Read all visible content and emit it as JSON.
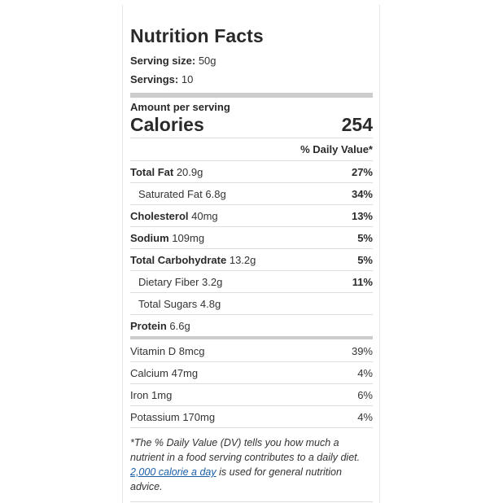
{
  "title": "Nutrition Facts",
  "serving": {
    "size_label": "Serving size:",
    "size_value": "50g",
    "count_label": "Servings:",
    "count_value": "10"
  },
  "amount_per_serving": "Amount per serving",
  "calories": {
    "label": "Calories",
    "value": "254"
  },
  "daily_value_header": "% Daily Value*",
  "nutrients": [
    {
      "name": "Total Fat",
      "amount": "20.9g",
      "dv": "27%"
    },
    {
      "name": "Saturated Fat",
      "amount": "6.8g",
      "dv": "34%"
    },
    {
      "name": "Cholesterol",
      "amount": "40mg",
      "dv": "13%"
    },
    {
      "name": "Sodium",
      "amount": "109mg",
      "dv": "5%"
    },
    {
      "name": "Total Carbohydrate",
      "amount": "13.2g",
      "dv": "5%"
    },
    {
      "name": "Dietary Fiber",
      "amount": "3.2g",
      "dv": "11%"
    },
    {
      "name": "Total Sugars",
      "amount": "4.8g",
      "dv": ""
    },
    {
      "name": "Protein",
      "amount": "6.6g",
      "dv": ""
    }
  ],
  "vitamins": [
    {
      "name": "Vitamin D",
      "amount": "8mcg",
      "dv": "39%"
    },
    {
      "name": "Calcium",
      "amount": "47mg",
      "dv": "4%"
    },
    {
      "name": "Iron",
      "amount": "1mg",
      "dv": "6%"
    },
    {
      "name": "Potassium",
      "amount": "170mg",
      "dv": "4%"
    }
  ],
  "footnote": {
    "before": "*The % Daily Value (DV) tells you how much a nutrient in a food serving contributes to a daily diet.",
    "link": "2,000 calorie a day",
    "after": "is used for general nutrition advice."
  }
}
